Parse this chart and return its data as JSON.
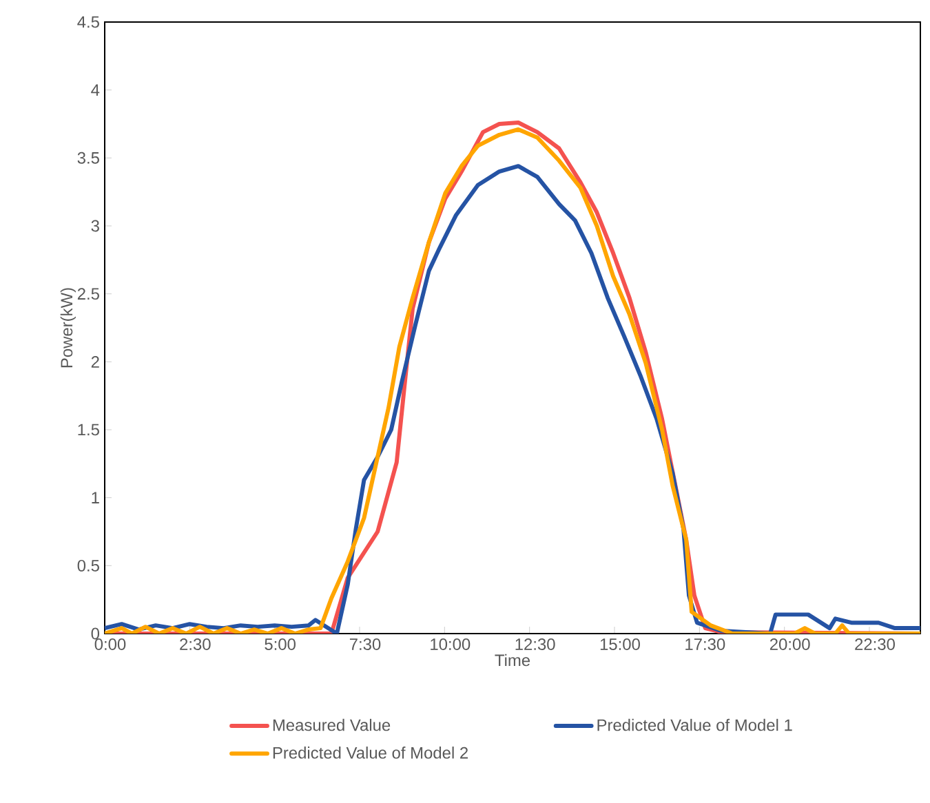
{
  "chart_data": {
    "type": "line",
    "xlabel": "Time",
    "ylabel": "Power(kW)",
    "xlim": [
      0,
      24
    ],
    "ylim": [
      0,
      4.5
    ],
    "xticks": [
      {
        "value": 0,
        "label": "0:00"
      },
      {
        "value": 2.5,
        "label": "2:30"
      },
      {
        "value": 5,
        "label": "5:00"
      },
      {
        "value": 7.5,
        "label": "7:30"
      },
      {
        "value": 10,
        "label": "10:00"
      },
      {
        "value": 12.5,
        "label": "12:30"
      },
      {
        "value": 15,
        "label": "15:00"
      },
      {
        "value": 17.5,
        "label": "17:30"
      },
      {
        "value": 20,
        "label": "20:00"
      },
      {
        "value": 22.5,
        "label": "22:30"
      }
    ],
    "yticks": [
      0,
      0.5,
      1,
      1.5,
      2,
      2.5,
      3,
      3.5,
      4,
      4.5
    ],
    "grid": false,
    "legend": "bottom",
    "marker": "none",
    "line_style": "solid",
    "series": [
      {
        "name": "Measured Value",
        "color": "#f4524f",
        "x": [
          0,
          6.67,
          7.15,
          8.03,
          8.59,
          8.82,
          9.06,
          9.54,
          10.02,
          10.5,
          11.13,
          11.61,
          12.17,
          12.73,
          13.37,
          14.0,
          14.48,
          14.96,
          15.44,
          15.92,
          16.4,
          16.79,
          17.11,
          17.35,
          17.67,
          18.15,
          24
        ],
        "values": [
          0,
          0,
          0.41,
          0.75,
          1.26,
          1.82,
          2.39,
          2.88,
          3.2,
          3.4,
          3.69,
          3.75,
          3.76,
          3.69,
          3.57,
          3.32,
          3.1,
          2.8,
          2.47,
          2.07,
          1.58,
          1.09,
          0.69,
          0.28,
          0.04,
          0.01,
          0
        ]
      },
      {
        "name": "Predicted Value of Model 1",
        "color": "#2553a4",
        "x": [
          0,
          0.5,
          1,
          1.5,
          2,
          2.5,
          3,
          3.5,
          4,
          4.5,
          5,
          5.5,
          6,
          6.2,
          6.83,
          7.15,
          7.39,
          7.63,
          8.03,
          8.43,
          8.75,
          9.14,
          9.54,
          9.86,
          10.34,
          10.98,
          11.61,
          12.17,
          12.73,
          13.37,
          13.84,
          14.32,
          14.8,
          15.28,
          15.76,
          16.24,
          16.71,
          17.03,
          17.19,
          17.43,
          18.15,
          19.58,
          19.74,
          20.7,
          21.33,
          21.5,
          21.97,
          22.77,
          23.25,
          24
        ],
        "values": [
          0.04,
          0.07,
          0.03,
          0.06,
          0.04,
          0.07,
          0.05,
          0.04,
          0.06,
          0.05,
          0.06,
          0.05,
          0.06,
          0.1,
          0,
          0.36,
          0.77,
          1.13,
          1.3,
          1.5,
          1.86,
          2.27,
          2.67,
          2.84,
          3.08,
          3.3,
          3.4,
          3.44,
          3.36,
          3.16,
          3.04,
          2.8,
          2.47,
          2.19,
          1.9,
          1.58,
          1.18,
          0.77,
          0.28,
          0.08,
          0.02,
          0,
          0.14,
          0.14,
          0.04,
          0.11,
          0.08,
          0.08,
          0.04,
          0.04
        ]
      },
      {
        "name": "Predicted Value of Model 2",
        "color": "#ffa500",
        "x": [
          0,
          0.5,
          0.8,
          1.2,
          1.6,
          2,
          2.4,
          2.8,
          3.2,
          3.6,
          4,
          4.4,
          4.8,
          5.2,
          5.6,
          6,
          6.35,
          6.67,
          7.15,
          7.63,
          8.03,
          8.35,
          8.67,
          9.06,
          9.54,
          10.02,
          10.5,
          10.98,
          11.61,
          12.17,
          12.73,
          13.37,
          14.0,
          14.48,
          14.96,
          15.44,
          15.92,
          16.4,
          16.71,
          17.11,
          17.27,
          17.83,
          18.47,
          20.3,
          20.6,
          20.9,
          21.5,
          21.7,
          21.9,
          24
        ],
        "values": [
          0,
          0.04,
          0,
          0.05,
          0,
          0.04,
          0,
          0.05,
          0,
          0.04,
          0,
          0.03,
          0,
          0.04,
          0,
          0.03,
          0.04,
          0.26,
          0.53,
          0.85,
          1.3,
          1.66,
          2.11,
          2.47,
          2.88,
          3.24,
          3.44,
          3.59,
          3.67,
          3.71,
          3.65,
          3.48,
          3.28,
          3,
          2.63,
          2.35,
          1.99,
          1.5,
          1.09,
          0.69,
          0.16,
          0.06,
          0,
          0,
          0.04,
          0,
          0,
          0.06,
          0,
          0
        ]
      }
    ]
  }
}
